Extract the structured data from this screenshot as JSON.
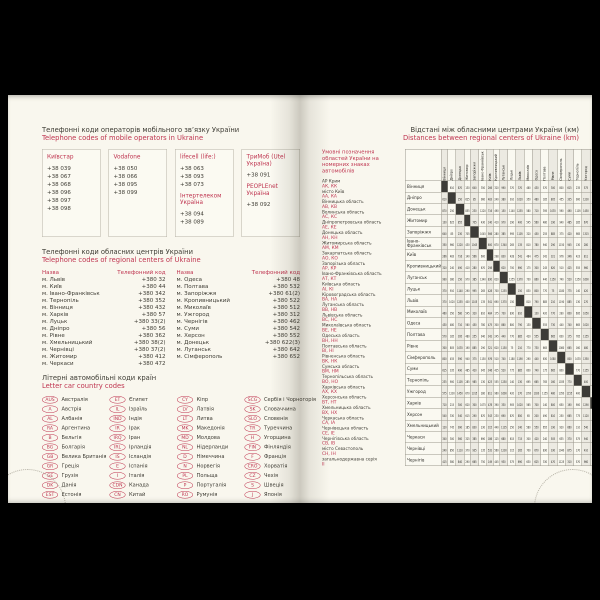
{
  "colors": {
    "accent_red": "#bf3550",
    "paper": "#f9f7ee",
    "text_dark": "#3e3c34",
    "cover_black": "#000000"
  },
  "page_left": {
    "mobile_section": {
      "title_uk": "Телефонні коди операторів мобільного зв’язку України",
      "title_en": "Telephone codes of mobile operators in Ukraine",
      "operators": [
        {
          "name": "Київстар",
          "codes": [
            "+38 039",
            "+38 067",
            "+38 068",
            "+38 096",
            "+38 097",
            "+38 098"
          ]
        },
        {
          "name": "Vodafone",
          "codes": [
            "+38 050",
            "+38 066",
            "+38 095",
            "+38 099"
          ]
        },
        {
          "name": "lifecell (life:)",
          "codes": [
            "+38 063",
            "+38 093",
            "+38 073"
          ],
          "name2": "Інтертелеком Україна",
          "codes2": [
            "+38 094",
            "+38 089"
          ]
        },
        {
          "name": "ТриМоб (Utel Україна)",
          "codes": [
            "+38 091"
          ],
          "name2": "PEOPLEnet Україна",
          "codes2": [
            "+38 092"
          ]
        }
      ]
    },
    "regional_section": {
      "title_uk": "Телефонні коди обласних центрів України",
      "title_en": "Telephone codes of regional centers of Ukraine",
      "col_header_name": "Назва",
      "col_header_code": "Телефонний код",
      "left_rows": [
        [
          "м. Львів",
          "+380 32"
        ],
        [
          "м. Київ",
          "+380 44"
        ],
        [
          "м. Івано-Франківськ",
          "+380 342"
        ],
        [
          "м. Тернопіль",
          "+380 352"
        ],
        [
          "м. Вінниця",
          "+380 432"
        ],
        [
          "м. Харків",
          "+380 57"
        ],
        [
          "м. Луцьк",
          "+380 33(2)"
        ],
        [
          "м. Дніпро",
          "+380 56"
        ],
        [
          "м. Рівне",
          "+380 362"
        ],
        [
          "м. Хмельницький",
          "+380 38(2)"
        ],
        [
          "м. Чернівці",
          "+380 37(2)"
        ],
        [
          "м. Житомир",
          "+380 412"
        ],
        [
          "м. Черкаси",
          "+380 472"
        ]
      ],
      "right_rows": [
        [
          "м. Одеса",
          "+380 48"
        ],
        [
          "м. Полтава",
          "+380 532"
        ],
        [
          "м. Запоріжжя",
          "+380 61(2)"
        ],
        [
          "м. Кропивницький",
          "+380 522"
        ],
        [
          "м. Миколаїв",
          "+380 512"
        ],
        [
          "м. Ужгород",
          "+380 312"
        ],
        [
          "м. Чернігів",
          "+380 462"
        ],
        [
          "м. Суми",
          "+380 542"
        ],
        [
          "м. Херсон",
          "+380 552"
        ],
        [
          "м. Донецьк",
          "+380 622(3)"
        ],
        [
          "м. Луганськ",
          "+380 642"
        ],
        [
          "м. Сімферополь",
          "+380 652"
        ]
      ]
    },
    "car_codes_section": {
      "title_uk": "Літерні автомобільні коди країн",
      "title_en": "Letter car country codes",
      "columns": [
        [
          [
            "AUS",
            "Австралія"
          ],
          [
            "A",
            "Австрія"
          ],
          [
            "AL",
            "Албанія"
          ],
          [
            "RA",
            "Аргентина"
          ],
          [
            "B",
            "Бельгія"
          ],
          [
            "BG",
            "Болгарія"
          ],
          [
            "GB",
            "Велика Британія"
          ],
          [
            "GR",
            "Греція"
          ],
          [
            "GE",
            "Грузія"
          ],
          [
            "DK",
            "Данія"
          ],
          [
            "EST",
            "Естонія"
          ]
        ],
        [
          [
            "ET",
            "Єгипет"
          ],
          [
            "IL",
            "Ізраїль"
          ],
          [
            "IND",
            "Індія"
          ],
          [
            "IR",
            "Ірак"
          ],
          [
            "IRQ",
            "Іран"
          ],
          [
            "IRL",
            "Ірландія"
          ],
          [
            "IS",
            "Ісландія"
          ],
          [
            "E",
            "Іспанія"
          ],
          [
            "I",
            "Італія"
          ],
          [
            "CDN",
            "Канада"
          ],
          [
            "CN",
            "Китай"
          ]
        ],
        [
          [
            "CY",
            "Кіпр"
          ],
          [
            "LV",
            "Латвія"
          ],
          [
            "LT",
            "Литва"
          ],
          [
            "MK",
            "Македонія"
          ],
          [
            "MD",
            "Молдова"
          ],
          [
            "NL",
            "Нідерланди"
          ],
          [
            "D",
            "Німеччина"
          ],
          [
            "N",
            "Норвегія"
          ],
          [
            "PL",
            "Польща"
          ],
          [
            "P",
            "Португалія"
          ],
          [
            "RO",
            "Румунія"
          ]
        ],
        [
          [
            "SCG",
            "Сербія і Чорногорія"
          ],
          [
            "SK",
            "Словаччина"
          ],
          [
            "SLO",
            "Словенія"
          ],
          [
            "TR",
            "Туреччина"
          ],
          [
            "H",
            "Угорщина"
          ],
          [
            "FIN",
            "Фінляндія"
          ],
          [
            "F",
            "Франція"
          ],
          [
            "CRO",
            "Хорватія"
          ],
          [
            "CZ",
            "Чехія"
          ],
          [
            "S",
            "Швеція"
          ],
          [
            "J",
            "Японія"
          ]
        ]
      ]
    }
  },
  "page_right": {
    "title_uk": "Відстані між обласними центрами України (км)",
    "title_en": "Distances between regional centers of Ukraine (km)",
    "plates_legend": {
      "heading": "Умовні позначення областей України на номерних знаках автомобілів",
      "entries": [
        [
          "АР Крим",
          "АК, КК"
        ],
        [
          "місто Київ",
          "АА, КА"
        ],
        [
          "Вінницька область",
          "АВ, КВ"
        ],
        [
          "Волинська область",
          "АС, КС"
        ],
        [
          "Дніпропетровська область",
          "АЕ, КЕ"
        ],
        [
          "Донецька область",
          "АН, КН"
        ],
        [
          "Житомирська область",
          "АМ, КМ"
        ],
        [
          "Закарпатська область",
          "АО, КО"
        ],
        [
          "Запорізька область",
          "АР, КР"
        ],
        [
          "Івано-Франківська область",
          "АТ, КТ"
        ],
        [
          "Київська область",
          "АІ, КІ"
        ],
        [
          "Кіровоградська область",
          "ВА, НА"
        ],
        [
          "Луганська область",
          "ВВ, НВ"
        ],
        [
          "Львівська область",
          "ВС, НС"
        ],
        [
          "Миколаївська область",
          "ВЕ, НЕ"
        ],
        [
          "Одеська область",
          "ВН, НН"
        ],
        [
          "Полтавська область",
          "ВІ, НІ"
        ],
        [
          "Рівненська область",
          "ВК, НК"
        ],
        [
          "Сумська область",
          "ВМ, НМ"
        ],
        [
          "Тернопільська область",
          "ВО, НО"
        ],
        [
          "Харківська область",
          "АХ, КХ"
        ],
        [
          "Херсонська область",
          "ВТ, НТ"
        ],
        [
          "Хмельницька область",
          "ВХ, НХ"
        ],
        [
          "Черкаська область",
          "СА, ІА"
        ],
        [
          "Чернівецька область",
          "СЕ, ІЕ"
        ],
        [
          "Чернігівська область",
          "СВ, ІВ"
        ],
        [
          "місто Севастополь",
          "СН, ІН"
        ],
        [
          "загальнодержавна серія",
          "ІІ"
        ]
      ]
    },
    "distance_table": {
      "cities": [
        "Вінниця",
        "Дніпро",
        "Донецьк",
        "Житомир",
        "Запоріжжя",
        "Івано-Франківськ",
        "Київ",
        "Кропивницький",
        "Луганськ",
        "Луцьк",
        "Львів",
        "Миколаїв",
        "Одеса",
        "Полтава",
        "Рівне",
        "Сімферополь",
        "Суми",
        "Тернопіль",
        "Ужгород",
        "Харків",
        "Херсон",
        "Хмельницький",
        "Черкаси",
        "Чернівці",
        "Чернігів"
      ],
      "matrix": [
        [
          null,
          610,
          870,
          130,
          640,
          350,
          266,
          320,
          990,
          370,
          370,
          460,
          430,
          570,
          300,
          800,
          615,
          235,
          575,
          710,
          540,
          120,
          340,
          240,
          415
        ],
        [
          610,
          null,
          250,
          625,
          85,
          960,
          483,
          240,
          380,
          910,
          1020,
          350,
          480,
          185,
          805,
          455,
          335,
          900,
          1230,
          215,
          330,
          745,
          300,
          850,
          580
        ],
        [
          870,
          250,
          null,
          855,
          230,
          1220,
          716,
          490,
          150,
          1140,
          1255,
          580,
          710,
          395,
          1035,
          590,
          490,
          1105,
          1450,
          300,
          540,
          990,
          560,
          1110,
          840
        ],
        [
          130,
          625,
          855,
          null,
          705,
          430,
          140,
          410,
          970,
          290,
          400,
          545,
          560,
          480,
          190,
          940,
          485,
          285,
          670,
          620,
          615,
          185,
          325,
          370,
          290
        ],
        [
          640,
          85,
          230,
          705,
          null,
          1045,
          566,
          280,
          385,
          995,
          1105,
          320,
          450,
          255,
          885,
          375,
          420,
          985,
          1315,
          300,
          290,
          830,
          385,
          935,
          665
        ],
        [
          350,
          960,
          1220,
          430,
          1045,
          null,
          600,
          670,
          1340,
          265,
          135,
          810,
          780,
          940,
          290,
          1150,
          945,
          130,
          280,
          1075,
          870,
          230,
          690,
          135,
          750
        ],
        [
          266,
          483,
          716,
          140,
          566,
          600,
          null,
          298,
          830,
          428,
          541,
          484,
          475,
          342,
          321,
          976,
          346,
          423,
          811,
          478,
          543,
          315,
          186,
          532,
          149
        ],
        [
          320,
          240,
          490,
          410,
          280,
          670,
          298,
          null,
          620,
          700,
          690,
          175,
          300,
          245,
          620,
          510,
          425,
          555,
          960,
          390,
          230,
          440,
          125,
          560,
          445
        ],
        [
          990,
          380,
          150,
          970,
          385,
          1340,
          830,
          620,
          null,
          1255,
          1370,
          730,
          860,
          440,
          1150,
          740,
          520,
          1250,
          1600,
          330,
          690,
          1135,
          680,
          1230,
          930
        ],
        [
          370,
          910,
          1140,
          290,
          995,
          265,
          428,
          700,
          1255,
          null,
          150,
          830,
          800,
          770,
          75,
          1180,
          775,
          140,
          420,
          905,
          870,
          250,
          615,
          315,
          575
        ],
        [
          370,
          1020,
          1255,
          400,
          1105,
          135,
          541,
          690,
          1370,
          150,
          null,
          810,
          790,
          885,
          210,
          1190,
          885,
          130,
          270,
          1020,
          850,
          240,
          715,
          265,
          690
        ],
        [
          460,
          350,
          580,
          545,
          320,
          810,
          484,
          175,
          730,
          830,
          810,
          null,
          130,
          420,
          770,
          290,
          600,
          695,
          1050,
          565,
          65,
          580,
          300,
          700,
          630
        ],
        [
          430,
          480,
          710,
          560,
          450,
          780,
          475,
          300,
          860,
          800,
          790,
          130,
          null,
          555,
          730,
          440,
          740,
          665,
          1020,
          700,
          200,
          550,
          420,
          670,
          625
        ],
        [
          570,
          185,
          395,
          480,
          255,
          940,
          342,
          245,
          440,
          770,
          885,
          420,
          555,
          null,
          665,
          630,
          175,
          765,
          1155,
          140,
          490,
          655,
          240,
          830,
          330
        ],
        [
          300,
          805,
          1035,
          190,
          885,
          290,
          321,
          620,
          1150,
          75,
          210,
          770,
          730,
          665,
          null,
          1080,
          665,
          160,
          480,
          800,
          810,
          190,
          505,
          330,
          470
        ],
        [
          800,
          455,
          590,
          940,
          375,
          1150,
          976,
          510,
          740,
          1180,
          1190,
          290,
          440,
          630,
          1080,
          null,
          800,
          1035,
          1350,
          650,
          250,
          920,
          635,
          1040,
          1125
        ],
        [
          615,
          335,
          490,
          485,
          420,
          945,
          346,
          425,
          520,
          775,
          885,
          600,
          740,
          175,
          665,
          800,
          null,
          770,
          1155,
          190,
          665,
          660,
          370,
          875,
          310
        ],
        [
          235,
          900,
          1105,
          285,
          985,
          130,
          423,
          555,
          1250,
          140,
          130,
          695,
          665,
          765,
          160,
          1035,
          770,
          null,
          400,
          900,
          775,
          110,
          575,
          170,
          570
        ],
        [
          575,
          1230,
          1450,
          670,
          1315,
          280,
          811,
          960,
          1600,
          420,
          270,
          1050,
          1020,
          1155,
          480,
          1350,
          1155,
          400,
          null,
          1290,
          1120,
          540,
          940,
          410,
          960
        ],
        [
          710,
          215,
          300,
          620,
          300,
          1075,
          478,
          390,
          330,
          905,
          1020,
          565,
          700,
          140,
          800,
          650,
          190,
          900,
          1290,
          null,
          550,
          795,
          380,
          970,
          560
        ],
        [
          540,
          330,
          540,
          615,
          290,
          870,
          543,
          230,
          690,
          870,
          850,
          65,
          200,
          490,
          810,
          250,
          665,
          775,
          1120,
          550,
          null,
          660,
          355,
          780,
          690
        ],
        [
          120,
          745,
          990,
          185,
          830,
          230,
          315,
          440,
          1135,
          250,
          240,
          580,
          550,
          655,
          190,
          920,
          660,
          110,
          540,
          795,
          660,
          null,
          460,
          190,
          465
        ],
        [
          340,
          300,
          560,
          325,
          385,
          690,
          186,
          125,
          680,
          615,
          715,
          300,
          420,
          240,
          505,
          635,
          370,
          575,
          940,
          380,
          355,
          460,
          null,
          580,
          335
        ],
        [
          240,
          850,
          1110,
          370,
          935,
          135,
          532,
          560,
          1230,
          315,
          265,
          700,
          670,
          830,
          330,
          1040,
          875,
          170,
          410,
          970,
          780,
          190,
          580,
          null,
          680
        ],
        [
          415,
          580,
          840,
          290,
          665,
          750,
          149,
          445,
          930,
          575,
          690,
          630,
          625,
          330,
          470,
          1125,
          310,
          570,
          960,
          560,
          690,
          465,
          335,
          680,
          null
        ]
      ]
    }
  }
}
